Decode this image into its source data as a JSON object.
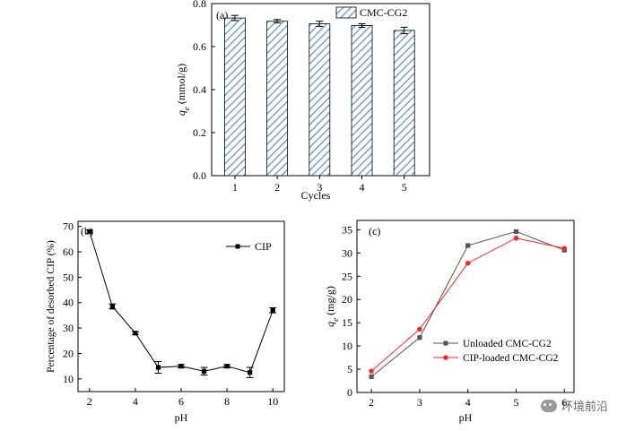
{
  "watermark": {
    "text": "环境前沿",
    "icon": "wechat-icon"
  },
  "chart_data": [
    {
      "panel": "(a)",
      "type": "bar",
      "categories": [
        "1",
        "2",
        "3",
        "4",
        "5"
      ],
      "series": [
        {
          "name": "CMC-CG2",
          "values": [
            0.733,
            0.718,
            0.706,
            0.698,
            0.675
          ],
          "errors": [
            0.012,
            0.008,
            0.012,
            0.008,
            0.015
          ]
        }
      ],
      "xlabel": "Cycles",
      "ylabel": "q_e (mmol/g)",
      "ylabel_main": "q",
      "ylabel_sub": "e",
      "ylabel_rest": " (mmol/g)",
      "ylim": [
        0.0,
        0.8
      ],
      "yticks": [
        "0.0",
        "0.2",
        "0.4",
        "0.6",
        "0.8"
      ],
      "legend_position": "top-right",
      "bar_fill": "hatched",
      "accent_color": "#4a86c8"
    },
    {
      "panel": "(b)",
      "type": "line",
      "x": [
        2,
        3,
        4,
        5,
        6,
        7,
        8,
        9,
        10
      ],
      "series": [
        {
          "name": "CIP",
          "values": [
            68,
            38.5,
            28,
            14.5,
            15,
            13,
            15,
            12.5,
            37
          ],
          "errors": [
            0.6,
            1.0,
            0.6,
            2.3,
            0.6,
            1.5,
            0.6,
            2.0,
            1.0
          ],
          "marker": "square",
          "color": "#000000"
        }
      ],
      "xlabel": "pH",
      "ylabel": "Percentage of desorbed CIP (%)",
      "xlim": [
        1.5,
        10.5
      ],
      "xticks": [
        "2",
        "4",
        "6",
        "8",
        "10"
      ],
      "ylim": [
        5,
        72
      ],
      "yticks": [
        "10",
        "20",
        "30",
        "40",
        "50",
        "60",
        "70"
      ],
      "legend_position": "top-right"
    },
    {
      "panel": "(c)",
      "type": "line",
      "x": [
        2,
        3,
        4,
        5,
        6
      ],
      "series": [
        {
          "name": "Unloaded CMC-CG2",
          "values": [
            3.4,
            11.8,
            31.6,
            34.6,
            30.6
          ],
          "marker": "square",
          "color": "#555555"
        },
        {
          "name": "CIP-loaded CMC-CG2",
          "values": [
            4.6,
            13.6,
            27.8,
            33.2,
            31.0
          ],
          "marker": "circle",
          "color": "#ee2a2a"
        }
      ],
      "xlabel": "pH",
      "ylabel": "q_e (mg/g)",
      "ylabel_main": "q",
      "ylabel_sub": "e",
      "ylabel_rest": " (mg/g)",
      "xlim": [
        1.7,
        6.2
      ],
      "xticks": [
        "2",
        "3",
        "4",
        "5",
        "6"
      ],
      "ylim": [
        0,
        37
      ],
      "yticks": [
        "0",
        "5",
        "10",
        "15",
        "20",
        "25",
        "30",
        "35"
      ],
      "legend_position": "bottom-right"
    }
  ]
}
